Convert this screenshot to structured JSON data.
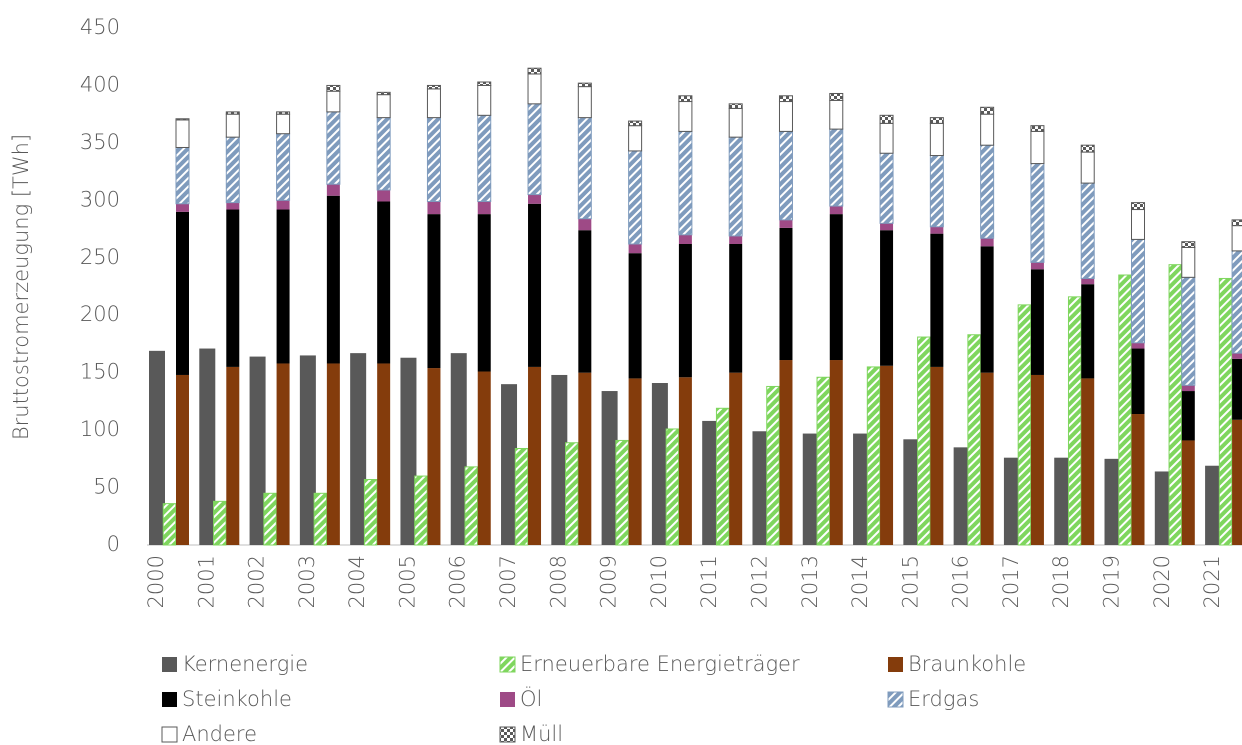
{
  "chart_data": {
    "type": "bar",
    "y_label": "Bruttostromerzeugung  [TWh]",
    "categories": [
      "2000",
      "2001",
      "2002",
      "2003",
      "2004",
      "2005",
      "2006",
      "2007",
      "2008",
      "2009",
      "2010",
      "2011",
      "2012",
      "2013",
      "2014",
      "2015",
      "2016",
      "2017",
      "2018",
      "2019",
      "2020",
      "2021"
    ],
    "ylim": [
      0,
      450
    ],
    "yticks": [
      0,
      50,
      100,
      150,
      200,
      250,
      300,
      350,
      400,
      450
    ],
    "grid": false,
    "legend": "bottom",
    "series": [
      {
        "name": "Kernenergie",
        "color": "#595959",
        "pattern": "none",
        "stack": 0,
        "values": [
          169,
          171,
          164,
          165,
          167,
          163,
          167,
          140,
          148,
          134,
          141,
          108,
          99,
          97,
          97,
          92,
          85,
          76,
          76,
          75,
          64,
          69
        ]
      },
      {
        "name": "Erneuerbare Energieträger",
        "color": "#7fd65e",
        "pattern": "diagonal",
        "stack": 1,
        "values": [
          36,
          38,
          45,
          45,
          57,
          60,
          68,
          84,
          89,
          91,
          101,
          119,
          138,
          146,
          155,
          181,
          183,
          209,
          216,
          235,
          244,
          232
        ]
      },
      {
        "name": "Braunkohle",
        "color": "#843c0c",
        "pattern": "none",
        "stack": 2,
        "values": [
          148,
          155,
          158,
          158,
          158,
          154,
          151,
          155,
          150,
          145,
          146,
          150,
          161,
          161,
          156,
          155,
          150,
          148,
          145,
          114,
          91,
          109
        ]
      },
      {
        "name": "Steinkohle",
        "color": "#000000",
        "pattern": "none",
        "stack": 2,
        "values": [
          142,
          137,
          134,
          146,
          141,
          134,
          137,
          142,
          124,
          109,
          116,
          112,
          115,
          127,
          118,
          116,
          110,
          92,
          82,
          57,
          43,
          53
        ]
      },
      {
        "name": "Öl",
        "color": "#9e4a86",
        "pattern": "none",
        "stack": 2,
        "values": [
          7,
          6,
          8,
          10,
          10,
          11,
          11,
          8,
          10,
          8,
          8,
          7,
          7,
          7,
          6,
          6,
          7,
          6,
          5,
          5,
          5,
          5
        ]
      },
      {
        "name": "Erdgas",
        "color": "#7f9bbd",
        "pattern": "diagonal",
        "stack": 2,
        "values": [
          49,
          57,
          58,
          63,
          63,
          73,
          75,
          79,
          88,
          81,
          90,
          86,
          77,
          67,
          61,
          62,
          81,
          86,
          83,
          90,
          94,
          89
        ]
      },
      {
        "name": "Andere",
        "color": "#ffffff",
        "pattern": "none",
        "stack": 2,
        "values": [
          24,
          20,
          17,
          18,
          20,
          25,
          26,
          26,
          27,
          22,
          26,
          25,
          26,
          25,
          26,
          28,
          27,
          28,
          27,
          26,
          26,
          22
        ]
      },
      {
        "name": "Müll",
        "color": "#595959",
        "pattern": "checker",
        "stack": 2,
        "values": [
          1,
          2,
          2,
          5,
          2,
          3,
          3,
          5,
          3,
          4,
          5,
          4,
          5,
          6,
          7,
          5,
          6,
          5,
          6,
          6,
          5,
          5
        ]
      }
    ]
  }
}
